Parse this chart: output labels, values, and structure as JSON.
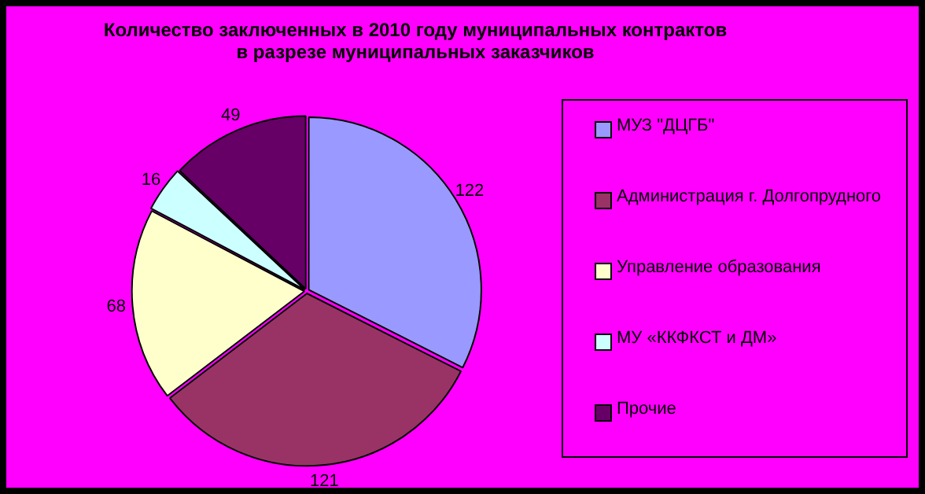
{
  "chart_data": {
    "type": "pie",
    "title": "Количество заключенных в 2010 году муниципальных контрактов в разрезе муниципальных заказчиков",
    "categories": [
      "МУЗ \"ДЦГБ\"",
      "Администрация г. Долгопрудного",
      "Управление образования",
      "МУ «ККФКСТ и ДМ»",
      "Прочие"
    ],
    "values": [
      122,
      121,
      68,
      16,
      49
    ],
    "colors": [
      "#9999ff",
      "#993366",
      "#ffffcc",
      "#ccffff",
      "#660066"
    ],
    "data_labels": true,
    "legend": "right"
  }
}
